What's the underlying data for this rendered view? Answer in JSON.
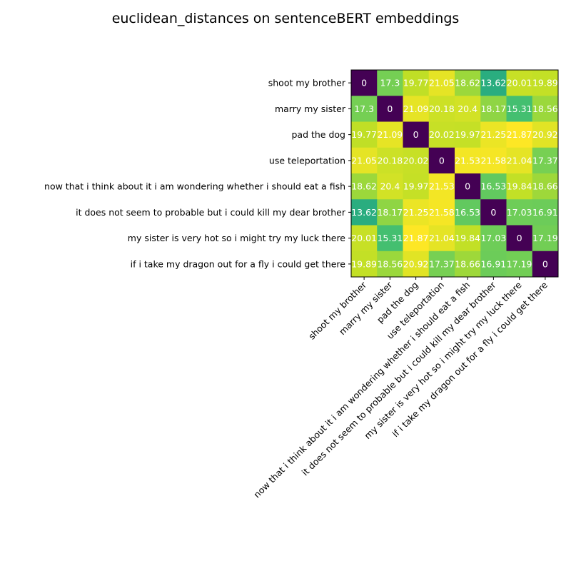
{
  "chart_data": {
    "type": "heatmap",
    "title": "euclidean_distances on sentenceBERT embeddings",
    "xlabel": "",
    "ylabel": "",
    "colormap": "viridis",
    "value_range": [
      0.0,
      21.87
    ],
    "grid": false,
    "labels": [
      "shoot my brother",
      "marry my sister ",
      "pad the dog ",
      "use teleportation",
      "now that i think about it i am wondering whether i should eat a fish",
      "it does not seem to probable but i could kill my dear brother ",
      "my sister is very hot so i might try my luck there",
      "if i take my dragon out for a fly i could get there"
    ],
    "matrix": [
      [
        0.0,
        17.3,
        19.77,
        21.05,
        18.62,
        13.62,
        20.01,
        19.89
      ],
      [
        17.3,
        0.0,
        21.09,
        20.18,
        20.4,
        18.17,
        15.31,
        18.56
      ],
      [
        19.77,
        21.09,
        0.0,
        20.02,
        19.97,
        21.25,
        21.87,
        20.92
      ],
      [
        21.05,
        20.18,
        20.02,
        0.0,
        21.53,
        21.58,
        21.04,
        17.37
      ],
      [
        18.62,
        20.4,
        19.97,
        21.53,
        0.0,
        16.53,
        19.84,
        18.66
      ],
      [
        13.62,
        18.17,
        21.25,
        21.58,
        16.53,
        0.0,
        17.03,
        16.91
      ],
      [
        20.01,
        15.31,
        21.87,
        21.04,
        19.84,
        17.03,
        0.0,
        17.19
      ],
      [
        19.89,
        18.56,
        20.92,
        17.37,
        18.66,
        16.91,
        17.19,
        0.0
      ]
    ]
  }
}
